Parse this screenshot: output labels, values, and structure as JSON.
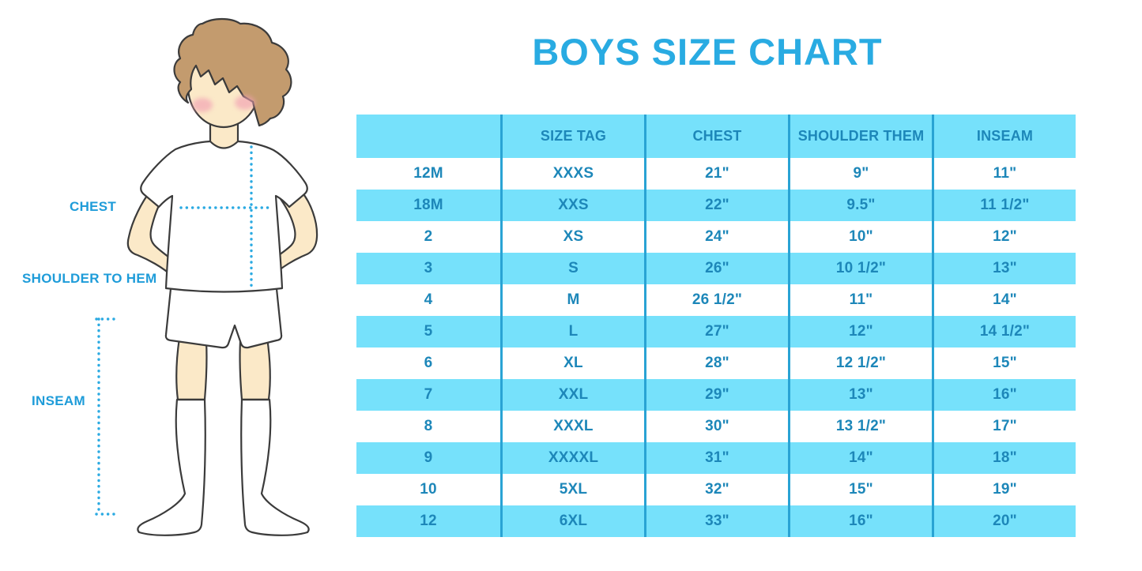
{
  "chart_data": {
    "type": "table",
    "title": "BOYS SIZE CHART",
    "columns": [
      "",
      "SIZE TAG",
      "CHEST",
      "SHOULDER THEM",
      "INSEAM"
    ],
    "rows": [
      [
        "12M",
        "XXXS",
        "21\"",
        "9\"",
        "11\""
      ],
      [
        "18M",
        "XXS",
        "22\"",
        "9.5\"",
        "11 1/2\""
      ],
      [
        "2",
        "XS",
        "24\"",
        "10\"",
        "12\""
      ],
      [
        "3",
        "S",
        "26\"",
        "10 1/2\"",
        "13\""
      ],
      [
        "4",
        "M",
        "26 1/2\"",
        "11\"",
        "14\""
      ],
      [
        "5",
        "L",
        "27\"",
        "12\"",
        "14 1/2\""
      ],
      [
        "6",
        "XL",
        "28\"",
        "12 1/2\"",
        "15\""
      ],
      [
        "7",
        "XXL",
        "29\"",
        "13\"",
        "16\""
      ],
      [
        "8",
        "XXXL",
        "30\"",
        "13 1/2\"",
        "17\""
      ],
      [
        "9",
        "XXXXL",
        "31\"",
        "14\"",
        "18\""
      ],
      [
        "10",
        "5XL",
        "32\"",
        "15\"",
        "19\""
      ],
      [
        "12",
        "6XL",
        "33\"",
        "16\"",
        "20\""
      ]
    ],
    "layout": {
      "stripe_pattern": "header cyan, then alternating white/cyan",
      "grid": "vertical column dividers only"
    }
  },
  "figure": {
    "description": "illustration of a boy in white t-shirt, shorts and knee socks with dotted measurement lines",
    "labels": {
      "chest": "CHEST",
      "shoulder_to_hem": "SHOULDER TO HEM",
      "inseam": "INSEAM"
    }
  },
  "colors": {
    "stripe_cyan": "#76E1FB",
    "divider": "#29A3D4",
    "table_text": "#1D87B9",
    "title_blue": "#29ABE2",
    "label_blue": "#1E9CD9",
    "dot_blue": "#2BAAE2",
    "skin": "#FBE9C8",
    "hair": "#C39B6E",
    "outline": "#3B3B3B",
    "blush": "#F2A0B3"
  }
}
